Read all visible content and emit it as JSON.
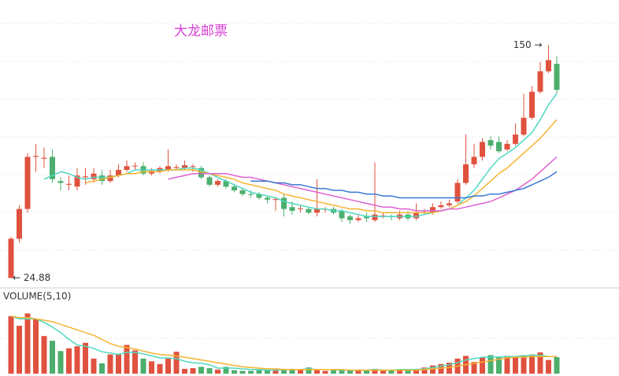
{
  "chart_data": [
    {
      "type": "candlestick",
      "title": "大龙邮票",
      "ylim": [
        20,
        165
      ],
      "up_color": "#e0523f",
      "down_color": "#4caf6e",
      "open": [
        24.9,
        46,
        62,
        90,
        89,
        90,
        77,
        75,
        74,
        79,
        78,
        80,
        77,
        80,
        83,
        85,
        85,
        81,
        82,
        83,
        84,
        84,
        85,
        84,
        79,
        75,
        77,
        74,
        72,
        70,
        70,
        68,
        67,
        68,
        63,
        62,
        62,
        60,
        62,
        62,
        61,
        58,
        56,
        58,
        56,
        58,
        58,
        57,
        59,
        57,
        60,
        60,
        63,
        64,
        66,
        76,
        86,
        90,
        99,
        98,
        94,
        97,
        102,
        111,
        125,
        136,
        140
      ],
      "close": [
        46,
        62,
        90,
        90.5,
        89.5,
        78,
        76,
        75.5,
        80,
        79.5,
        81,
        77,
        80,
        83,
        85,
        85.3,
        81,
        82.5,
        84,
        85,
        84.5,
        85.5,
        85,
        79,
        75,
        77,
        74,
        72,
        70,
        69.8,
        68,
        67,
        67.3,
        62,
        61,
        62.3,
        60,
        62,
        62,
        60,
        57,
        56,
        57,
        57,
        59,
        58.5,
        57.8,
        59,
        57,
        60,
        60.3,
        63,
        64,
        65,
        76,
        86,
        90,
        98,
        96,
        93,
        97,
        102,
        111,
        125,
        136,
        142,
        126
      ],
      "high": [
        47,
        64,
        92,
        97,
        95,
        94,
        79,
        80,
        84,
        84,
        84,
        83,
        83,
        86,
        88,
        87,
        87,
        84,
        85,
        94,
        86,
        88,
        86,
        85,
        80,
        78,
        78,
        75,
        73,
        72,
        71,
        69,
        68,
        70,
        66,
        64,
        63,
        78,
        63,
        63,
        62,
        59,
        59,
        60,
        87,
        60,
        59,
        61,
        61,
        65,
        62,
        65,
        66,
        67,
        78,
        102,
        97,
        100,
        101,
        101,
        99,
        108,
        124,
        128,
        141,
        150,
        144
      ],
      "low": [
        24.88,
        44,
        60,
        82,
        84,
        76,
        72,
        72,
        72,
        75,
        76,
        75,
        76,
        79,
        82,
        83,
        80,
        80,
        81,
        82,
        83,
        83,
        82,
        78,
        74,
        74,
        73,
        71,
        69,
        68,
        67,
        65,
        61,
        58,
        59,
        60,
        59,
        58,
        60,
        59,
        55,
        54,
        55,
        55,
        55,
        57,
        56,
        56,
        56,
        56,
        59,
        59,
        62,
        63,
        65,
        75,
        84,
        88,
        94,
        92,
        93,
        96,
        101,
        110,
        124,
        135,
        124
      ],
      "max_label": {
        "value": 150,
        "label": "150 →"
      },
      "min_label": {
        "value": 24.88,
        "label": "← 24.88"
      },
      "moving_averages": [
        {
          "color": "#4fd8c0",
          "values": [
            null,
            null,
            null,
            null,
            78,
            80,
            82,
            81,
            79,
            78,
            79,
            79,
            79,
            80,
            81,
            83,
            83,
            83,
            83,
            83,
            83,
            84,
            84,
            83,
            81,
            79,
            77,
            75,
            73,
            71,
            70,
            69,
            68,
            66,
            65,
            64,
            63,
            62,
            62,
            61,
            61,
            60,
            59,
            58,
            58,
            58,
            58,
            58,
            58,
            58,
            59,
            60,
            61,
            62,
            64,
            68,
            72,
            78,
            84,
            89,
            92,
            95,
            99,
            103,
            110,
            118,
            124
          ]
        },
        {
          "color": "#f5b431",
          "values": [
            null,
            null,
            null,
            null,
            null,
            null,
            null,
            null,
            null,
            76,
            77,
            78,
            79,
            80,
            81,
            81,
            82,
            82,
            82,
            83,
            83,
            83,
            83,
            82,
            81,
            80,
            79,
            78,
            76,
            75,
            74,
            73,
            72,
            70,
            69,
            68,
            67,
            66,
            65,
            64,
            63,
            62,
            62,
            61,
            61,
            60,
            60,
            60,
            60,
            60,
            60,
            60,
            61,
            62,
            64,
            66,
            69,
            73,
            77,
            81,
            84,
            88,
            92,
            96,
            100,
            105,
            110
          ]
        },
        {
          "color": "#e05fd0",
          "values": [
            null,
            null,
            null,
            null,
            null,
            null,
            null,
            null,
            null,
            null,
            null,
            null,
            null,
            null,
            null,
            null,
            null,
            null,
            null,
            78,
            79,
            80,
            81,
            81,
            81,
            81,
            81,
            80,
            79,
            79,
            78,
            77,
            76,
            75,
            74,
            73,
            72,
            71,
            70,
            69,
            68,
            67,
            66,
            65,
            64,
            63,
            63,
            62,
            62,
            61,
            61,
            61,
            61,
            62,
            62,
            63,
            64,
            65,
            66,
            68,
            70,
            72,
            75,
            78,
            82,
            86,
            90
          ]
        },
        {
          "color": "#3a78d4",
          "values": [
            null,
            null,
            null,
            null,
            null,
            null,
            null,
            null,
            null,
            null,
            null,
            null,
            null,
            null,
            null,
            null,
            null,
            null,
            null,
            null,
            null,
            null,
            null,
            null,
            null,
            null,
            null,
            null,
            null,
            77,
            77,
            77,
            76,
            76,
            75,
            75,
            74,
            73,
            73,
            72,
            72,
            71,
            71,
            70,
            70,
            69,
            69,
            68,
            68,
            68,
            68,
            68,
            68,
            68,
            68,
            68,
            69,
            69,
            70,
            70,
            71,
            72,
            73,
            75,
            77,
            79,
            82
          ]
        }
      ]
    },
    {
      "type": "bar",
      "label": "VOLUME(5,10)",
      "ylim": [
        0,
        100
      ],
      "values": [
        84,
        70,
        88,
        80,
        55,
        48,
        33,
        37,
        40,
        45,
        22,
        15,
        28,
        28,
        42,
        34,
        22,
        18,
        14,
        22,
        32,
        7,
        8,
        10,
        8,
        6,
        10,
        5,
        4,
        4,
        5,
        6,
        6,
        5,
        7,
        6,
        9,
        5,
        4,
        5,
        5,
        5,
        6,
        5,
        7,
        4,
        5,
        6,
        6,
        7,
        9,
        12,
        14,
        16,
        22,
        26,
        17,
        24,
        27,
        25,
        26,
        25,
        27,
        28,
        31,
        20,
        24
      ],
      "moving_averages": [
        {
          "color": "#4fd8c0",
          "values": [
            84,
            80,
            80,
            80,
            75,
            68,
            60,
            50,
            42,
            40,
            37,
            32,
            30,
            28,
            31,
            31,
            29,
            26,
            23,
            23,
            22,
            18,
            16,
            15,
            13,
            8,
            8,
            8,
            7,
            6,
            6,
            5,
            5,
            6,
            6,
            6,
            7,
            6,
            6,
            6,
            5,
            5,
            5,
            5,
            6,
            5,
            5,
            6,
            6,
            6,
            7,
            9,
            11,
            13,
            16,
            20,
            22,
            24,
            24,
            24,
            25,
            25,
            26,
            27,
            27,
            25,
            25
          ]
        },
        {
          "color": "#f5b431",
          "values": [
            84,
            82,
            82,
            80,
            78,
            76,
            72,
            68,
            64,
            60,
            56,
            50,
            44,
            40,
            38,
            36,
            33,
            30,
            28,
            27,
            26,
            24,
            22,
            20,
            18,
            16,
            14,
            12,
            10,
            9,
            8,
            7,
            7,
            6,
            6,
            6,
            6,
            6,
            6,
            6,
            6,
            5,
            5,
            5,
            5,
            5,
            5,
            5,
            5,
            5,
            6,
            7,
            8,
            9,
            11,
            13,
            15,
            17,
            19,
            21,
            23,
            24,
            24,
            25,
            25,
            25,
            25
          ]
        }
      ]
    }
  ]
}
